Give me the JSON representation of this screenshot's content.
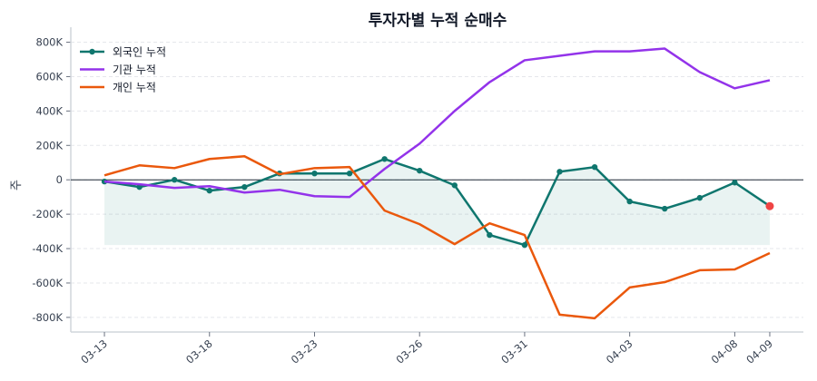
{
  "chart_data": {
    "type": "line",
    "title": "투자자별 누적 순매수",
    "xlabel": "",
    "ylabel": "주",
    "ylim": [
      -885,
      845
    ],
    "xlim": [
      -0.96,
      19.96
    ],
    "y_unit": "K",
    "y_ticks": [
      -800,
      -600,
      -400,
      -200,
      0,
      200,
      400,
      600,
      800
    ],
    "y_tick_labels": [
      "-800K",
      "-600K",
      "-400K",
      "-200K",
      "0",
      "200K",
      "400K",
      "600K",
      "800K"
    ],
    "x_ticks": [
      {
        "index": 0,
        "label": "03-13"
      },
      {
        "index": 3,
        "label": "03-18"
      },
      {
        "index": 6,
        "label": "03-23"
      },
      {
        "index": 9,
        "label": "03-26"
      },
      {
        "index": 12,
        "label": "03-31"
      },
      {
        "index": 15,
        "label": "04-03"
      },
      {
        "index": 18,
        "label": "04-08"
      },
      {
        "index": 19,
        "label": "04-09"
      }
    ],
    "grid": "horizontal-dashed",
    "legend_position": "top-left",
    "series": [
      {
        "name": "외국인 누적",
        "color": "#0f766e",
        "markers": true,
        "fill_to_min": true,
        "last_marker_color": "#ef4444",
        "values": [
          -10,
          -42,
          0,
          -63,
          -42,
          37,
          37,
          37,
          121,
          53,
          -32,
          -321,
          -379,
          47,
          74,
          -126,
          -168,
          -105,
          -16,
          -153
        ]
      },
      {
        "name": "기관 누적",
        "color": "#9333ea",
        "markers": false,
        "values": [
          -10,
          -26,
          -47,
          -37,
          -74,
          -58,
          -95,
          -100,
          63,
          210,
          400,
          568,
          695,
          721,
          747,
          747,
          763,
          626,
          532,
          579
        ]
      },
      {
        "name": "개인 누적",
        "color": "#ea580c",
        "markers": false,
        "values": [
          26,
          84,
          68,
          121,
          137,
          32,
          68,
          74,
          -179,
          -258,
          -374,
          -253,
          -321,
          -784,
          -805,
          -626,
          -595,
          -526,
          -521,
          -426
        ]
      }
    ]
  }
}
